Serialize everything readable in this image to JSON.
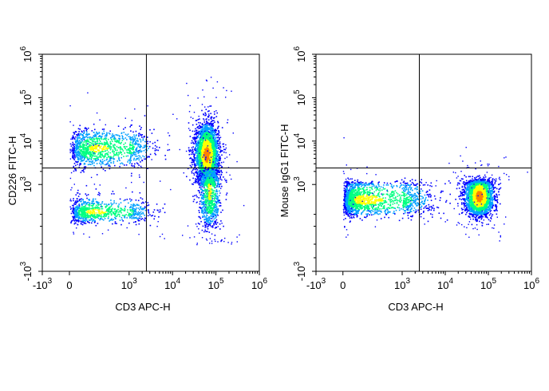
{
  "chart_data": [
    {
      "type": "scatter",
      "subtype": "flow-cytometry-density",
      "xlabel": "CD3 APC-H",
      "ylabel": "CD226 FITC-H",
      "x_scale": "biexponential",
      "y_scale": "biexponential",
      "xlim": [
        -1000,
        1000000
      ],
      "ylim": [
        -1000,
        1000000
      ],
      "x_ticks": [
        {
          "value": -1000,
          "label": "-10",
          "exp": "3"
        },
        {
          "value": 0,
          "label": "0",
          "exp": ""
        },
        {
          "value": 1000,
          "label": "10",
          "exp": "3"
        },
        {
          "value": 10000,
          "label": "10",
          "exp": "4"
        },
        {
          "value": 100000,
          "label": "10",
          "exp": "5"
        },
        {
          "value": 1000000,
          "label": "10",
          "exp": "6"
        }
      ],
      "y_ticks": [
        {
          "value": -1000,
          "label": "-10",
          "exp": "3"
        },
        {
          "value": 1000,
          "label": "10",
          "exp": "3"
        },
        {
          "value": 10000,
          "label": "10",
          "exp": "4"
        },
        {
          "value": 100000,
          "label": "10",
          "exp": "5"
        },
        {
          "value": 1000000,
          "label": "10",
          "exp": "6"
        }
      ],
      "quadrant_gate": {
        "x": 2500,
        "y": 2400
      },
      "populations": [
        {
          "x": 450,
          "y": 7000,
          "spread_x": 0.42,
          "spread_y": 0.22,
          "events": 1200,
          "peak": 0.7
        },
        {
          "x": 400,
          "y": 550,
          "spread_x": 0.42,
          "spread_y": 0.08,
          "events": 900,
          "peak": 0.72
        },
        {
          "x": 60000,
          "y": 5000,
          "spread_x": 0.13,
          "spread_y": 0.34,
          "events": 3200,
          "peak": 1.0
        },
        {
          "x": 70000,
          "y": 900,
          "spread_x": 0.12,
          "spread_y": 0.22,
          "events": 900,
          "peak": 0.7
        }
      ],
      "grid": false,
      "legend": "none"
    },
    {
      "type": "scatter",
      "subtype": "flow-cytometry-density",
      "xlabel": "CD3 APC-H",
      "ylabel": "Mouse IgG1 FITC-H",
      "x_scale": "biexponential",
      "y_scale": "biexponential",
      "xlim": [
        -1000,
        1000000
      ],
      "ylim": [
        -1000,
        1000000
      ],
      "x_ticks": [
        {
          "value": -1000,
          "label": "-10",
          "exp": "3"
        },
        {
          "value": 0,
          "label": "0",
          "exp": ""
        },
        {
          "value": 1000,
          "label": "10",
          "exp": "3"
        },
        {
          "value": 10000,
          "label": "10",
          "exp": "4"
        },
        {
          "value": 100000,
          "label": "10",
          "exp": "5"
        },
        {
          "value": 1000000,
          "label": "10",
          "exp": "6"
        }
      ],
      "y_ticks": [
        {
          "value": -1000,
          "label": "-10",
          "exp": "3"
        },
        {
          "value": 1000,
          "label": "10",
          "exp": "3"
        },
        {
          "value": 10000,
          "label": "10",
          "exp": "4"
        },
        {
          "value": 100000,
          "label": "10",
          "exp": "5"
        },
        {
          "value": 1000000,
          "label": "10",
          "exp": "6"
        }
      ],
      "quadrant_gate": {
        "x": 2500,
        "y": 2400
      },
      "populations": [
        {
          "x": 350,
          "y": 750,
          "spread_x": 0.55,
          "spread_y": 0.09,
          "events": 1700,
          "peak": 0.75
        },
        {
          "x": 60000,
          "y": 800,
          "spread_x": 0.16,
          "spread_y": 0.1,
          "events": 2600,
          "peak": 1.0
        }
      ],
      "grid": false,
      "legend": "none"
    }
  ],
  "colors": {
    "density_scale": [
      "#0000ff",
      "#00a0ff",
      "#00ff80",
      "#ffff00",
      "#ff8000",
      "#ff0000"
    ]
  }
}
